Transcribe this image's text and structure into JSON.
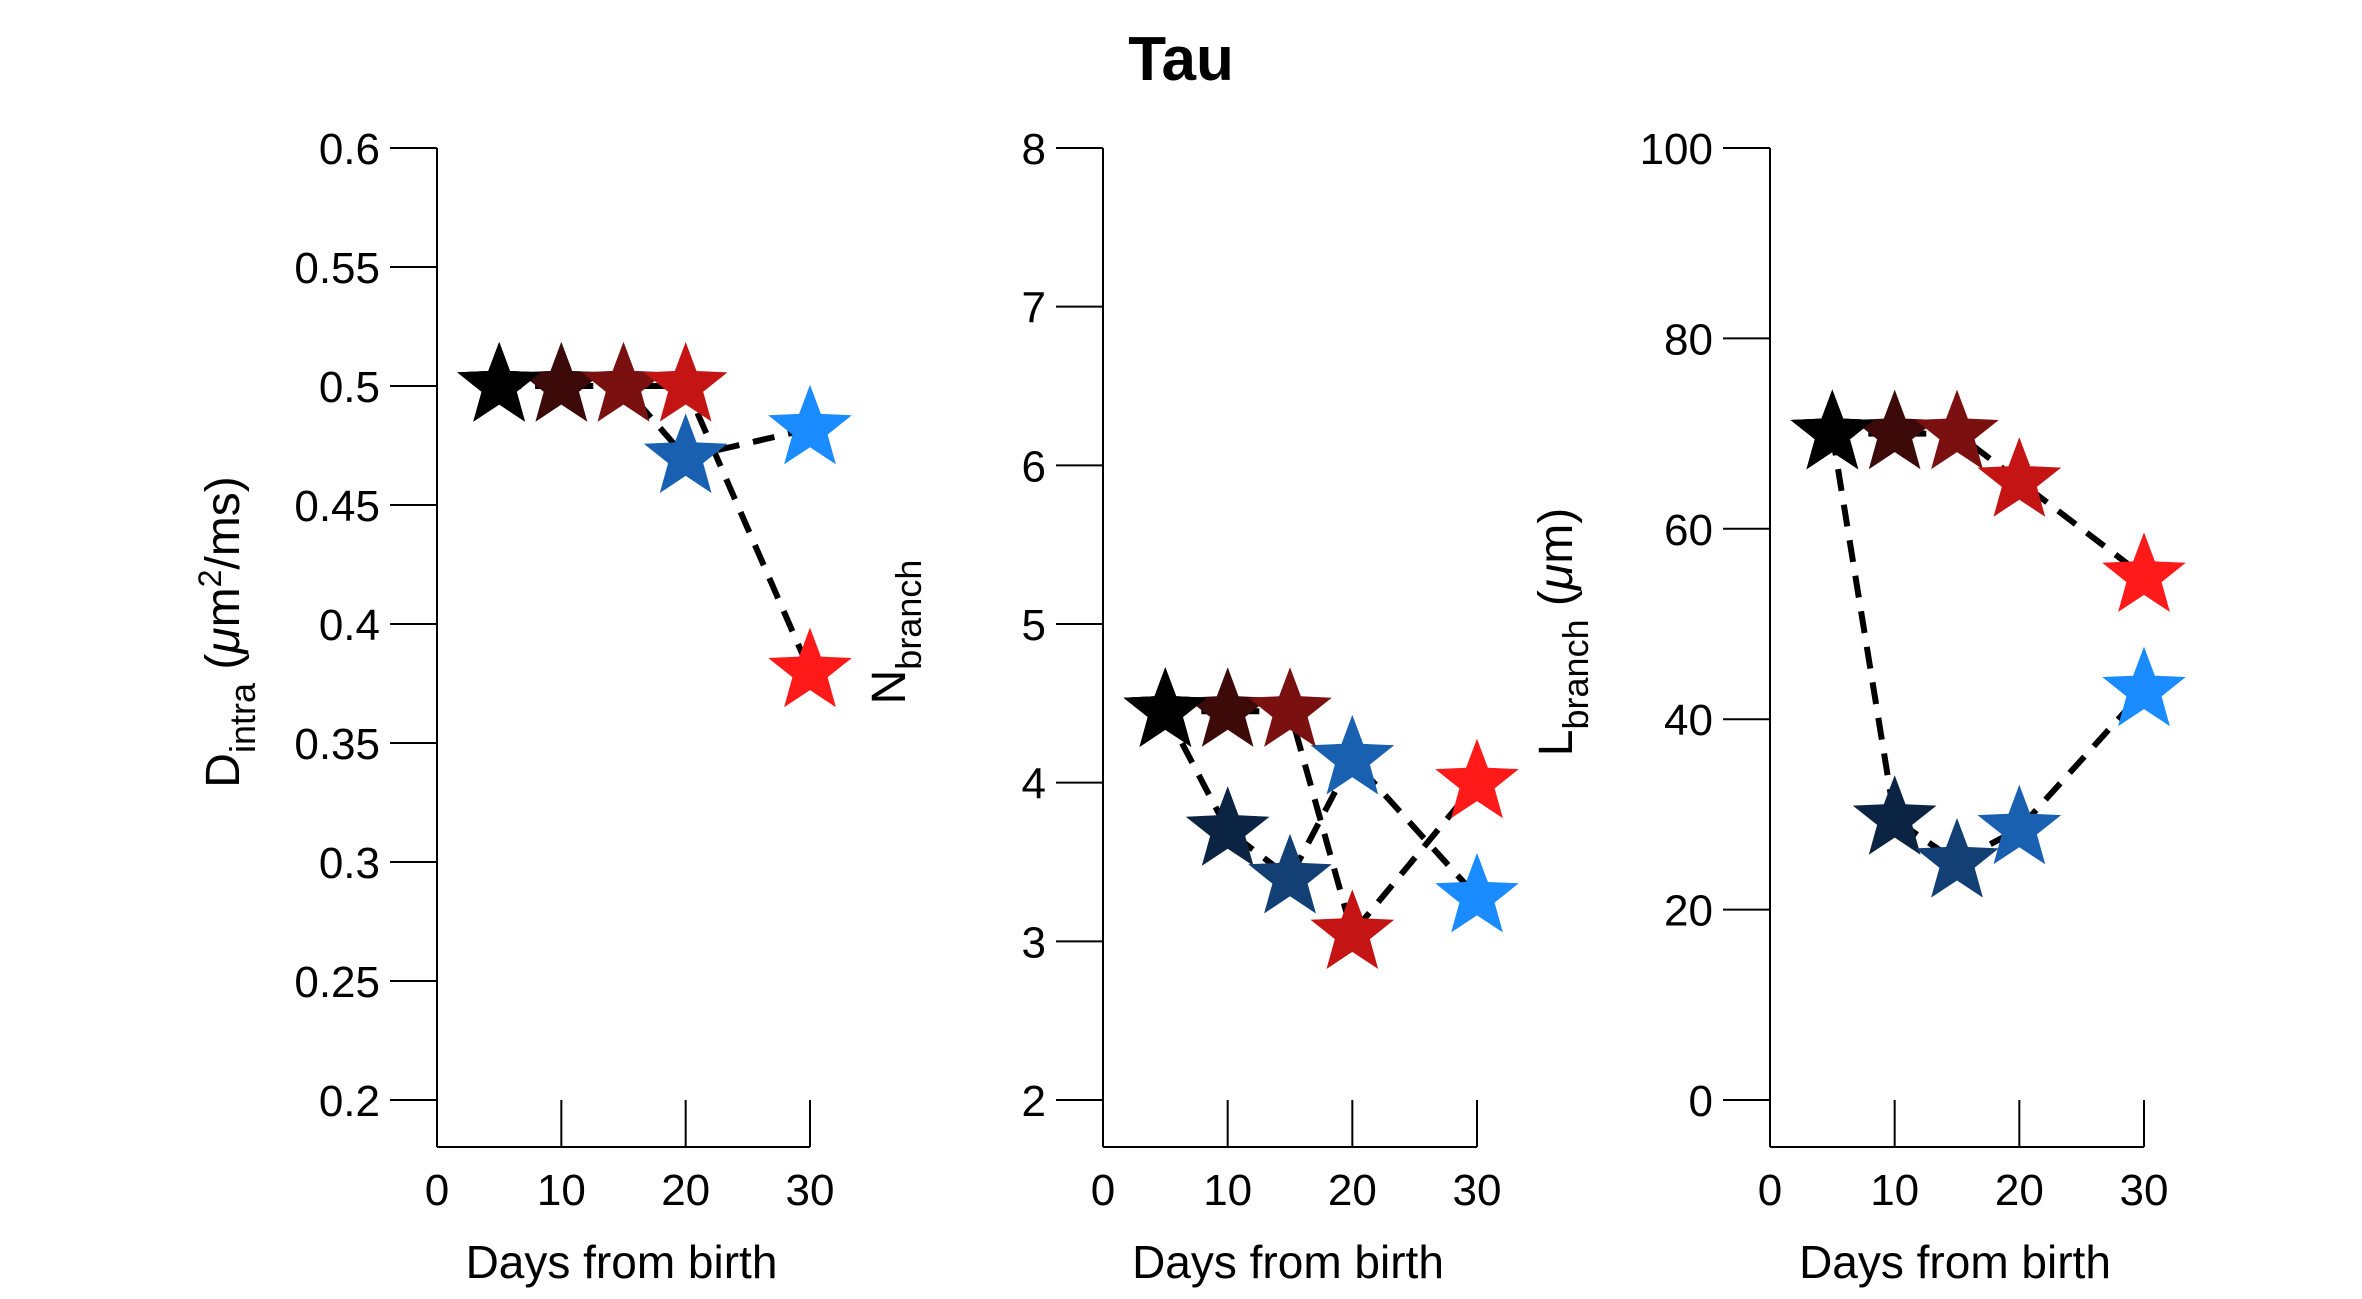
{
  "title": "Tau",
  "chart_data": [
    {
      "type": "scatter",
      "ylabel": {
        "main": "D",
        "sub": "intra",
        "unit_open": " (",
        "mu": "μ",
        "unit_mid": "m",
        "sup": "2",
        "unit_close": "/ms)"
      },
      "xlabel": "Days from birth",
      "xlim": [
        0,
        30
      ],
      "ylim": [
        0.2,
        0.6
      ],
      "xticks": [
        0,
        10,
        20,
        30
      ],
      "xtick_labels": [
        "0",
        "10",
        "20",
        "30"
      ],
      "yticks": [
        0.2,
        0.25,
        0.3,
        0.35,
        0.4,
        0.45,
        0.5,
        0.55,
        0.6
      ],
      "ytick_labels": [
        "0.2",
        "0.25",
        "0.3",
        "0.35",
        "0.4",
        "0.45",
        "0.5",
        "0.55",
        "0.6"
      ],
      "series": [
        {
          "color": "#8e1c1c",
          "points": [
            {
              "x": 5,
              "y": 0.5,
              "color": "#000000"
            },
            {
              "x": 10,
              "y": 0.5,
              "color": "#3d0a0a"
            },
            {
              "x": 15,
              "y": 0.5,
              "color": "#7a1010"
            },
            {
              "x": 20,
              "y": 0.5,
              "color": "#c41414"
            },
            {
              "x": 30,
              "y": 0.38,
              "color": "#ff1a1a"
            }
          ]
        },
        {
          "color": "#1d5fa8",
          "points": [
            {
              "x": 5,
              "y": 0.5,
              "color": "#000000"
            },
            {
              "x": 10,
              "y": 0.5,
              "color": "#0c2444"
            },
            {
              "x": 15,
              "y": 0.5,
              "color": "#123f74"
            },
            {
              "x": 20,
              "y": 0.47,
              "color": "#1a60b0"
            },
            {
              "x": 30,
              "y": 0.482,
              "color": "#1a8cff"
            }
          ]
        }
      ]
    },
    {
      "type": "scatter",
      "ylabel": {
        "main": "N",
        "sub": "branch"
      },
      "xlabel": "Days from birth",
      "xlim": [
        0,
        30
      ],
      "ylim": [
        2,
        8
      ],
      "xticks": [
        0,
        10,
        20,
        30
      ],
      "xtick_labels": [
        "0",
        "10",
        "20",
        "30"
      ],
      "yticks": [
        2,
        3,
        4,
        5,
        6,
        7,
        8
      ],
      "ytick_labels": [
        "2",
        "3",
        "4",
        "5",
        "6",
        "7",
        "8"
      ],
      "series": [
        {
          "color": "#8e1c1c",
          "points": [
            {
              "x": 5,
              "y": 4.45,
              "color": "#000000"
            },
            {
              "x": 10,
              "y": 4.45,
              "color": "#3d0a0a"
            },
            {
              "x": 15,
              "y": 4.45,
              "color": "#7a1010"
            },
            {
              "x": 20,
              "y": 3.05,
              "color": "#c41414"
            },
            {
              "x": 30,
              "y": 4.0,
              "color": "#ff1a1a"
            }
          ]
        },
        {
          "color": "#1d5fa8",
          "points": [
            {
              "x": 5,
              "y": 4.45,
              "color": "#000000"
            },
            {
              "x": 10,
              "y": 3.7,
              "color": "#0c2444"
            },
            {
              "x": 15,
              "y": 3.4,
              "color": "#123f74"
            },
            {
              "x": 20,
              "y": 4.15,
              "color": "#1a60b0"
            },
            {
              "x": 30,
              "y": 3.28,
              "color": "#1a8cff"
            }
          ]
        }
      ]
    },
    {
      "type": "scatter",
      "ylabel": {
        "main": "L",
        "sub": "branch",
        "unit_open": " (",
        "mu": "μ",
        "unit_mid": "m",
        "unit_close": ")"
      },
      "xlabel": "Days from birth",
      "xlim": [
        0,
        30
      ],
      "ylim": [
        0,
        100
      ],
      "xticks": [
        0,
        10,
        20,
        30
      ],
      "xtick_labels": [
        "0",
        "10",
        "20",
        "30"
      ],
      "yticks": [
        0,
        20,
        40,
        60,
        80,
        100
      ],
      "ytick_labels": [
        "0",
        "20",
        "40",
        "60",
        "80",
        "100"
      ],
      "series": [
        {
          "color": "#8e1c1c",
          "points": [
            {
              "x": 5,
              "y": 70,
              "color": "#000000"
            },
            {
              "x": 10,
              "y": 70,
              "color": "#3d0a0a"
            },
            {
              "x": 15,
              "y": 70,
              "color": "#7a1010"
            },
            {
              "x": 20,
              "y": 65,
              "color": "#c41414"
            },
            {
              "x": 30,
              "y": 55,
              "color": "#ff1a1a"
            }
          ]
        },
        {
          "color": "#1d5fa8",
          "points": [
            {
              "x": 5,
              "y": 70,
              "color": "#000000"
            },
            {
              "x": 10,
              "y": 29.5,
              "color": "#0c2444"
            },
            {
              "x": 15,
              "y": 25,
              "color": "#123f74"
            },
            {
              "x": 20,
              "y": 28.5,
              "color": "#1a60b0"
            },
            {
              "x": 30,
              "y": 43,
              "color": "#1a8cff"
            }
          ]
        }
      ]
    }
  ]
}
